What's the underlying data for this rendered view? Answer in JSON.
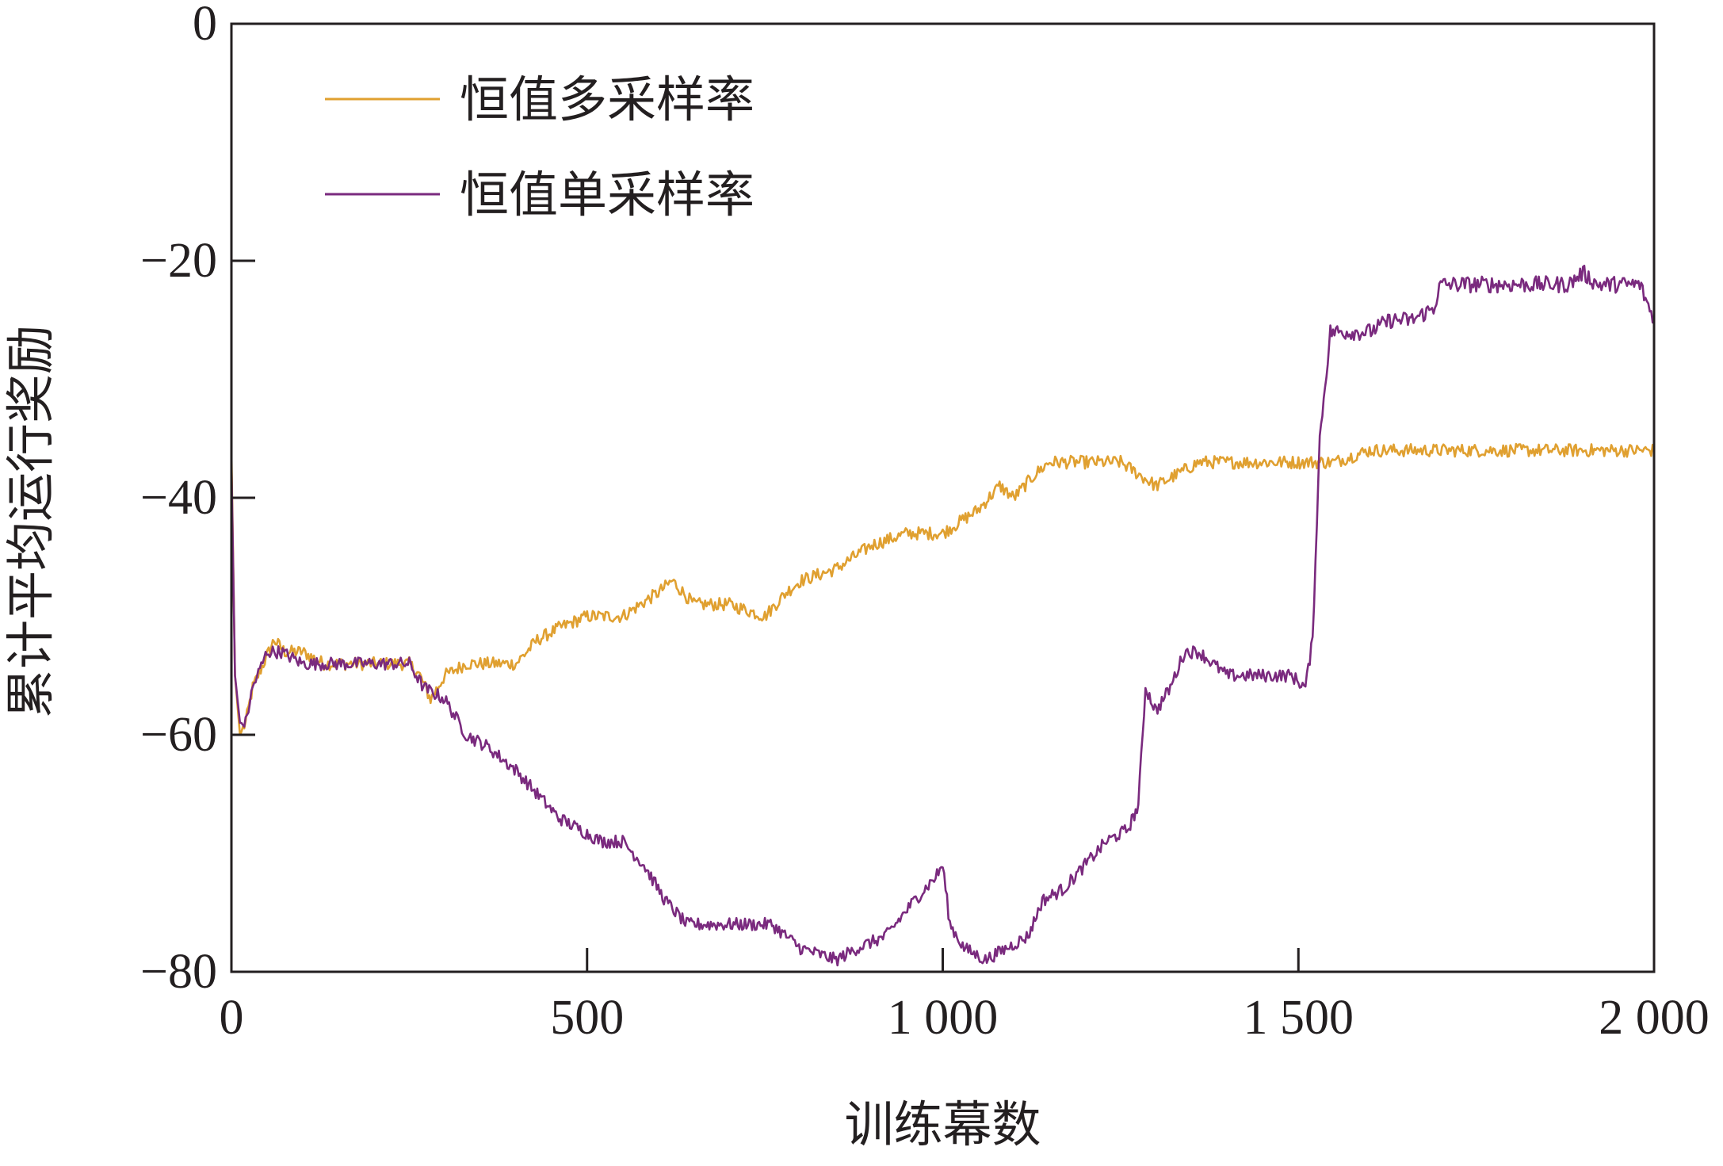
{
  "chart_data": {
    "type": "line",
    "title": "",
    "xlabel": "训练幕数",
    "ylabel": "累计平均运行奖励",
    "xlim": [
      0,
      2000
    ],
    "ylim": [
      -80,
      0
    ],
    "x_ticks": [
      0,
      500,
      1000,
      1500,
      2000
    ],
    "x_tick_labels": [
      "0",
      "500",
      "1 000",
      "1 500",
      "2 000"
    ],
    "y_ticks": [
      0,
      -20,
      -40,
      -60,
      -80
    ],
    "y_tick_labels": [
      "0",
      "−20",
      "−40",
      "−60",
      "−80"
    ],
    "grid": false,
    "legend_position": "top-left",
    "series": [
      {
        "name": "恒值多采样率",
        "color": "#e0a030",
        "points": [
          [
            0,
            -36
          ],
          [
            5,
            -55
          ],
          [
            12,
            -60
          ],
          [
            20,
            -59
          ],
          [
            30,
            -56
          ],
          [
            45,
            -54
          ],
          [
            60,
            -52
          ],
          [
            75,
            -53
          ],
          [
            100,
            -53
          ],
          [
            130,
            -54
          ],
          [
            160,
            -54
          ],
          [
            190,
            -54
          ],
          [
            220,
            -54
          ],
          [
            250,
            -54
          ],
          [
            265,
            -55
          ],
          [
            280,
            -57
          ],
          [
            300,
            -55
          ],
          [
            330,
            -54
          ],
          [
            370,
            -54
          ],
          [
            400,
            -54
          ],
          [
            430,
            -52
          ],
          [
            460,
            -51
          ],
          [
            500,
            -50
          ],
          [
            550,
            -50
          ],
          [
            600,
            -48
          ],
          [
            620,
            -47
          ],
          [
            650,
            -49
          ],
          [
            700,
            -49
          ],
          [
            750,
            -50
          ],
          [
            780,
            -48
          ],
          [
            800,
            -47
          ],
          [
            850,
            -46
          ],
          [
            900,
            -44
          ],
          [
            950,
            -43
          ],
          [
            1000,
            -43
          ],
          [
            1050,
            -41
          ],
          [
            1080,
            -39
          ],
          [
            1100,
            -40
          ],
          [
            1130,
            -38
          ],
          [
            1150,
            -37
          ],
          [
            1200,
            -37
          ],
          [
            1250,
            -37
          ],
          [
            1300,
            -39
          ],
          [
            1330,
            -38
          ],
          [
            1360,
            -37
          ],
          [
            1400,
            -37
          ],
          [
            1450,
            -37
          ],
          [
            1500,
            -37
          ],
          [
            1550,
            -37
          ],
          [
            1600,
            -36
          ],
          [
            1650,
            -36
          ],
          [
            1700,
            -36
          ],
          [
            1750,
            -36
          ],
          [
            1800,
            -36
          ],
          [
            1850,
            -36
          ],
          [
            1900,
            -36
          ],
          [
            1950,
            -36
          ],
          [
            2000,
            -36
          ]
        ]
      },
      {
        "name": "恒值单采样率",
        "color": "#7a2a7e",
        "points": [
          [
            0,
            -37
          ],
          [
            5,
            -55
          ],
          [
            12,
            -59
          ],
          [
            20,
            -59
          ],
          [
            30,
            -56
          ],
          [
            50,
            -53
          ],
          [
            70,
            -53
          ],
          [
            100,
            -54
          ],
          [
            130,
            -54
          ],
          [
            160,
            -54
          ],
          [
            190,
            -54
          ],
          [
            220,
            -54
          ],
          [
            250,
            -54
          ],
          [
            270,
            -56
          ],
          [
            300,
            -57
          ],
          [
            330,
            -60
          ],
          [
            360,
            -61
          ],
          [
            400,
            -63
          ],
          [
            430,
            -65
          ],
          [
            460,
            -67
          ],
          [
            490,
            -68
          ],
          [
            520,
            -69
          ],
          [
            550,
            -69
          ],
          [
            580,
            -71
          ],
          [
            610,
            -74
          ],
          [
            640,
            -76
          ],
          [
            680,
            -76
          ],
          [
            720,
            -76
          ],
          [
            760,
            -76
          ],
          [
            800,
            -78
          ],
          [
            850,
            -79
          ],
          [
            880,
            -78
          ],
          [
            920,
            -77
          ],
          [
            960,
            -74
          ],
          [
            990,
            -72
          ],
          [
            1000,
            -71
          ],
          [
            1010,
            -76
          ],
          [
            1030,
            -78
          ],
          [
            1060,
            -79
          ],
          [
            1090,
            -78
          ],
          [
            1120,
            -77
          ],
          [
            1140,
            -74
          ],
          [
            1170,
            -73
          ],
          [
            1200,
            -71
          ],
          [
            1230,
            -69
          ],
          [
            1260,
            -68
          ],
          [
            1275,
            -66
          ],
          [
            1285,
            -56
          ],
          [
            1300,
            -58
          ],
          [
            1320,
            -56
          ],
          [
            1340,
            -53
          ],
          [
            1360,
            -53
          ],
          [
            1380,
            -54
          ],
          [
            1400,
            -55
          ],
          [
            1420,
            -55
          ],
          [
            1460,
            -55
          ],
          [
            1490,
            -55
          ],
          [
            1510,
            -56
          ],
          [
            1520,
            -52
          ],
          [
            1530,
            -35
          ],
          [
            1545,
            -26
          ],
          [
            1570,
            -26
          ],
          [
            1600,
            -26
          ],
          [
            1630,
            -25
          ],
          [
            1660,
            -25
          ],
          [
            1690,
            -24
          ],
          [
            1700,
            -22
          ],
          [
            1720,
            -22
          ],
          [
            1750,
            -22
          ],
          [
            1800,
            -22
          ],
          [
            1850,
            -22
          ],
          [
            1880,
            -22
          ],
          [
            1900,
            -21
          ],
          [
            1920,
            -22
          ],
          [
            1950,
            -22
          ],
          [
            1980,
            -22
          ],
          [
            2000,
            -25
          ]
        ]
      }
    ]
  }
}
